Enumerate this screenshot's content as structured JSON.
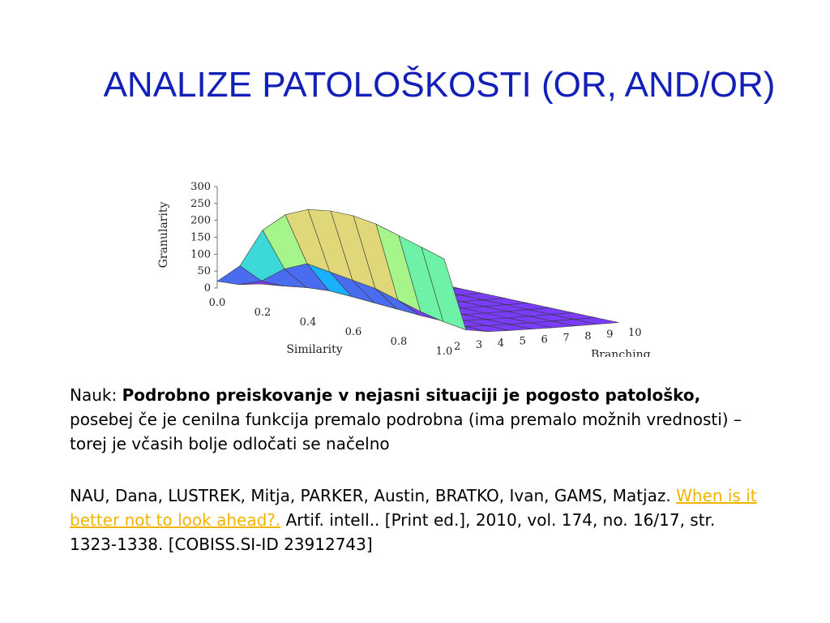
{
  "slide": {
    "title": "ANALIZE PATOLOŠKOSTI (OR, AND/OR)"
  },
  "lesson": {
    "prefix": "Nauk: ",
    "bold": "Podrobno preiskovanje v nejasni situaciji je pogosto patološko,",
    "rest": " posebej če je cenilna funkcija premalo podrobna (ima premalo možnih vrednosti) – torej je včasih bolje odločati se načelno"
  },
  "citation": {
    "authors": "NAU, Dana, LUSTREK, Mitja, PARKER, Austin, BRATKO, Ivan, GAMS, Matjaz. ",
    "link_text": "When is it better not to look ahead?.",
    "details": " Artif. intell.. [Print ed.], 2010, vol. 174, no. 16/17, str. 1323-1338. [COBISS.SI-ID 23912743]",
    "link_color": "#f0b400"
  },
  "chart_data": {
    "type": "surface3d",
    "xlabel": "Similarity",
    "ylabel": "Branching",
    "zlabel": "Granularity",
    "x_ticks": [
      "0.0",
      "0.2",
      "0.4",
      "0.6",
      "0.8",
      "1.0"
    ],
    "y_ticks": [
      "2",
      "3",
      "4",
      "5",
      "6",
      "7",
      "8",
      "9",
      "10"
    ],
    "z_ticks": [
      "0",
      "50",
      "100",
      "150",
      "200",
      "250",
      "300"
    ],
    "similarity": [
      0.0,
      0.1,
      0.2,
      0.3,
      0.4,
      0.5,
      0.6,
      0.7,
      0.8,
      0.9,
      1.0
    ],
    "branching": [
      2,
      3,
      4,
      5,
      6,
      7,
      8,
      9,
      10
    ],
    "granularity_by_branching": [
      [
        20,
        80,
        200,
        260,
        290,
        300,
        300,
        290,
        270,
        250,
        230
      ],
      [
        5,
        30,
        80,
        110,
        100,
        90,
        80,
        60,
        40,
        25,
        15
      ],
      [
        2,
        10,
        20,
        25,
        22,
        18,
        14,
        10,
        8,
        6,
        5
      ],
      [
        1,
        5,
        8,
        9,
        8,
        7,
        6,
        5,
        4,
        3,
        3
      ],
      [
        0,
        3,
        4,
        4,
        4,
        3,
        3,
        2,
        2,
        2,
        2
      ],
      [
        0,
        2,
        2,
        2,
        2,
        2,
        2,
        1,
        1,
        1,
        1
      ],
      [
        0,
        1,
        1,
        1,
        1,
        1,
        1,
        1,
        1,
        1,
        1
      ],
      [
        0,
        1,
        1,
        1,
        1,
        1,
        1,
        1,
        1,
        1,
        1
      ],
      [
        0,
        1,
        1,
        1,
        1,
        1,
        1,
        1,
        1,
        1,
        1
      ]
    ],
    "zlim": [
      0,
      300
    ],
    "colormap": [
      "#7a3cff",
      "#4a6cf0",
      "#1ab0ff",
      "#3dd9d9",
      "#6df2a8",
      "#a6f58a",
      "#e0d878",
      "#ff9a4a",
      "#ff6030",
      "#ff2a10"
    ]
  }
}
